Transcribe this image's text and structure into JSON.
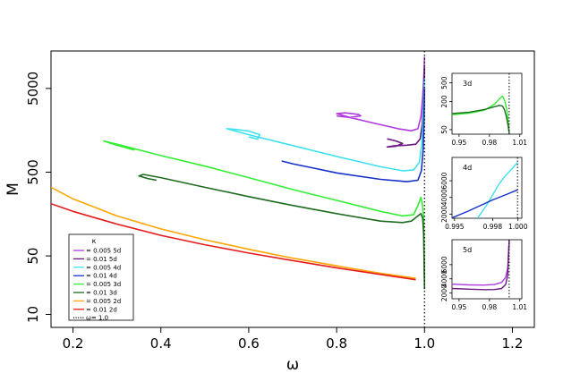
{
  "chart_data": [
    {
      "type": "line",
      "role": "main",
      "xlabel": "ω",
      "ylabel": "M",
      "xlim": [
        0.15,
        1.25
      ],
      "ylim": [
        7,
        14000
      ],
      "y_scale": "log",
      "x_ticks": [
        0.2,
        0.4,
        0.6,
        0.8,
        1.0,
        1.2
      ],
      "x_tick_labels": [
        "0.2",
        "0.4",
        "0.6",
        "0.8",
        "1.0",
        "1.2"
      ],
      "y_ticks": [
        10,
        50,
        500,
        5000
      ],
      "y_tick_labels": [
        "10",
        "50",
        "500",
        "5000"
      ],
      "grid": false,
      "legend_position": "bottom-left",
      "legend_title": "κ",
      "vline": {
        "x": 1.0,
        "label": "ω= 1.0",
        "color": "#000000",
        "style": "dotted"
      },
      "series": [
        {
          "name": "= 0.005 5d",
          "color": "#b03adf",
          "points": [
            [
              0.8,
              2350
            ],
            [
              0.83,
              2250
            ],
            [
              0.855,
              2350
            ],
            [
              0.85,
              2450
            ],
            [
              0.82,
              2550
            ],
            [
              0.8,
              2500
            ],
            [
              0.83,
              2250
            ],
            [
              0.88,
              1950
            ],
            [
              0.94,
              1650
            ],
            [
              0.97,
              1560
            ],
            [
              0.985,
              1650
            ],
            [
              0.992,
              2300
            ],
            [
              0.996,
              4000
            ],
            [
              0.999,
              8000
            ],
            [
              1.0,
              12000
            ]
          ]
        },
        {
          "name": "= 0.01 5d",
          "color": "#6b1780",
          "points": [
            [
              0.915,
              1250
            ],
            [
              0.935,
              1180
            ],
            [
              0.95,
              1100
            ],
            [
              0.935,
              1020
            ],
            [
              0.915,
              1000
            ],
            [
              0.93,
              1030
            ],
            [
              0.96,
              1050
            ],
            [
              0.98,
              1080
            ],
            [
              0.99,
              1250
            ],
            [
              0.995,
              1900
            ],
            [
              0.998,
              3500
            ],
            [
              1.0,
              9000
            ]
          ]
        },
        {
          "name": "= 0.005 4d",
          "color": "#3ee0ee",
          "points": [
            [
              0.6,
              1320
            ],
            [
              0.62,
              1240
            ],
            [
              0.625,
              1400
            ],
            [
              0.6,
              1550
            ],
            [
              0.57,
              1620
            ],
            [
              0.55,
              1650
            ],
            [
              0.6,
              1400
            ],
            [
              0.7,
              1040
            ],
            [
              0.8,
              770
            ],
            [
              0.9,
              580
            ],
            [
              0.95,
              520
            ],
            [
              0.975,
              530
            ],
            [
              0.988,
              650
            ],
            [
              0.994,
              1100
            ],
            [
              0.997,
              2200
            ],
            [
              1.0,
              6500
            ]
          ]
        },
        {
          "name": "= 0.01 4d",
          "color": "#1530c8",
          "points": [
            [
              0.675,
              680
            ],
            [
              0.7,
              630
            ],
            [
              0.74,
              570
            ],
            [
              0.8,
              490
            ],
            [
              0.9,
              410
            ],
            [
              0.96,
              385
            ],
            [
              0.985,
              400
            ],
            [
              0.993,
              520
            ],
            [
              0.997,
              950
            ],
            [
              0.999,
              2200
            ],
            [
              1.0,
              5000
            ]
          ]
        },
        {
          "name": "= 0.005 3d",
          "color": "#33ee33",
          "points": [
            [
              0.34,
              920
            ],
            [
              0.32,
              980
            ],
            [
              0.3,
              1050
            ],
            [
              0.28,
              1130
            ],
            [
              0.27,
              1180
            ],
            [
              0.3,
              1080
            ],
            [
              0.4,
              790
            ],
            [
              0.5,
              590
            ],
            [
              0.6,
              430
            ],
            [
              0.7,
              310
            ],
            [
              0.8,
              230
            ],
            [
              0.9,
              170
            ],
            [
              0.95,
              150
            ],
            [
              0.975,
              155
            ],
            [
              0.985,
              200
            ],
            [
              0.992,
              250
            ],
            [
              0.995,
              210
            ],
            [
              0.998,
              140
            ],
            [
              0.999,
              60
            ],
            [
              1.0,
              25
            ]
          ]
        },
        {
          "name": "= 0.01 3d",
          "color": "#1f6b1f",
          "points": [
            [
              0.39,
              400
            ],
            [
              0.37,
              420
            ],
            [
              0.35,
              450
            ],
            [
              0.36,
              470
            ],
            [
              0.4,
              430
            ],
            [
              0.5,
              330
            ],
            [
              0.6,
              255
            ],
            [
              0.7,
              200
            ],
            [
              0.8,
              160
            ],
            [
              0.9,
              130
            ],
            [
              0.95,
              125
            ],
            [
              0.97,
              130
            ],
            [
              0.985,
              150
            ],
            [
              0.992,
              160
            ],
            [
              0.996,
              140
            ],
            [
              0.998,
              90
            ],
            [
              0.999,
              45
            ],
            [
              1.0,
              20
            ]
          ]
        },
        {
          "name": "= 0.005 2d",
          "color": "#ffa500",
          "points": [
            [
              0.15,
              330
            ],
            [
              0.2,
              240
            ],
            [
              0.3,
              150
            ],
            [
              0.4,
              105
            ],
            [
              0.5,
              78
            ],
            [
              0.6,
              60
            ],
            [
              0.7,
              47
            ],
            [
              0.8,
              38
            ],
            [
              0.9,
              31
            ],
            [
              0.98,
              27
            ]
          ]
        },
        {
          "name": "= 0.01 2d",
          "color": "#e51b1b",
          "points": [
            [
              0.15,
              210
            ],
            [
              0.2,
              170
            ],
            [
              0.3,
              120
            ],
            [
              0.4,
              88
            ],
            [
              0.5,
              68
            ],
            [
              0.6,
              54
            ],
            [
              0.7,
              44
            ],
            [
              0.8,
              36
            ],
            [
              0.9,
              30
            ],
            [
              0.98,
              26
            ]
          ]
        }
      ],
      "legend": [
        {
          "label": "= 0.005 5d",
          "color": "#b03adf",
          "style": "solid"
        },
        {
          "label": "= 0.01 5d",
          "color": "#6b1780",
          "style": "solid"
        },
        {
          "label": "= 0.005 4d",
          "color": "#3ee0ee",
          "style": "solid"
        },
        {
          "label": "= 0.01 4d",
          "color": "#1530c8",
          "style": "solid"
        },
        {
          "label": "= 0.005 3d",
          "color": "#33ee33",
          "style": "solid"
        },
        {
          "label": "= 0.01 3d",
          "color": "#1f6b1f",
          "style": "solid"
        },
        {
          "label": "= 0.005 2d",
          "color": "#ffa500",
          "style": "solid"
        },
        {
          "label": "= 0.01 2d",
          "color": "#e51b1b",
          "style": "solid"
        },
        {
          "label": "ω= 1.0",
          "color": "#000000",
          "style": "dotted"
        }
      ]
    },
    {
      "type": "line",
      "role": "inset",
      "title": "3d",
      "xlim": [
        0.943,
        1.012
      ],
      "ylim": [
        40,
        800
      ],
      "y_scale": "log",
      "x_ticks": [
        0.95,
        0.98,
        1.01
      ],
      "x_tick_labels": [
        "0.95",
        "0.98",
        "1.01"
      ],
      "y_ticks": [
        50,
        200,
        500
      ],
      "y_tick_labels": [
        "50",
        "200",
        "500"
      ],
      "vline": {
        "x": 0.9995
      },
      "series": [
        {
          "color": "#33ee33",
          "points": [
            [
              0.943,
              104
            ],
            [
              0.96,
              112
            ],
            [
              0.975,
              130
            ],
            [
              0.985,
              175
            ],
            [
              0.99,
              230
            ],
            [
              0.993,
              260
            ],
            [
              0.995,
              210
            ],
            [
              0.997,
              140
            ],
            [
              0.9985,
              80
            ],
            [
              0.9995,
              45
            ]
          ]
        },
        {
          "color": "#1f6b1f",
          "points": [
            [
              0.943,
              110
            ],
            [
              0.96,
              118
            ],
            [
              0.975,
              135
            ],
            [
              0.985,
              155
            ],
            [
              0.99,
              165
            ],
            [
              0.993,
              160
            ],
            [
              0.995,
              130
            ],
            [
              0.997,
              90
            ],
            [
              0.9985,
              60
            ],
            [
              0.9995,
              42
            ]
          ]
        }
      ]
    },
    {
      "type": "line",
      "role": "inset",
      "title": "4d",
      "xlim": [
        0.9948,
        1.0003
      ],
      "ylim": [
        1500,
        8800
      ],
      "x_ticks": [
        0.995,
        0.998,
        1.0
      ],
      "x_tick_labels": [
        "0.995",
        "0.998",
        "1.000"
      ],
      "y_ticks": [
        2000,
        4000,
        6000
      ],
      "y_tick_labels": [
        "2000",
        "4000",
        "6000"
      ],
      "vline": {
        "x": 0.99996
      },
      "series": [
        {
          "color": "#3ee0ee",
          "points": [
            [
              0.9968,
              1500
            ],
            [
              0.9975,
              3000
            ],
            [
              0.998,
              4300
            ],
            [
              0.9985,
              5600
            ],
            [
              0.999,
              6600
            ],
            [
              0.9995,
              7400
            ],
            [
              0.99996,
              8200
            ]
          ]
        },
        {
          "color": "#1530c8",
          "points": [
            [
              0.9948,
              1550
            ],
            [
              0.996,
              2300
            ],
            [
              0.997,
              3000
            ],
            [
              0.998,
              3700
            ],
            [
              0.999,
              4300
            ],
            [
              0.99996,
              4900
            ]
          ]
        }
      ]
    },
    {
      "type": "line",
      "role": "inset",
      "title": "5d",
      "xlim": [
        0.943,
        1.012
      ],
      "ylim": [
        1200,
        9500
      ],
      "x_ticks": [
        0.95,
        0.98,
        1.01
      ],
      "x_tick_labels": [
        "0.95",
        "0.98",
        "1.01"
      ],
      "y_ticks": [
        2000,
        4000,
        6000
      ],
      "y_tick_labels": [
        "2000",
        "4000",
        "6000"
      ],
      "vline": {
        "x": 0.9995
      },
      "series": [
        {
          "color": "#b03adf",
          "points": [
            [
              0.943,
              3250
            ],
            [
              0.96,
              3150
            ],
            [
              0.975,
              3120
            ],
            [
              0.985,
              3200
            ],
            [
              0.992,
              3500
            ],
            [
              0.996,
              4200
            ],
            [
              0.998,
              5500
            ],
            [
              0.9995,
              9500
            ]
          ]
        },
        {
          "color": "#6b1780",
          "points": [
            [
              0.943,
              2650
            ],
            [
              0.96,
              2550
            ],
            [
              0.975,
              2480
            ],
            [
              0.985,
              2500
            ],
            [
              0.992,
              2650
            ],
            [
              0.996,
              3200
            ],
            [
              0.998,
              4500
            ],
            [
              0.9995,
              9500
            ]
          ]
        }
      ]
    }
  ]
}
